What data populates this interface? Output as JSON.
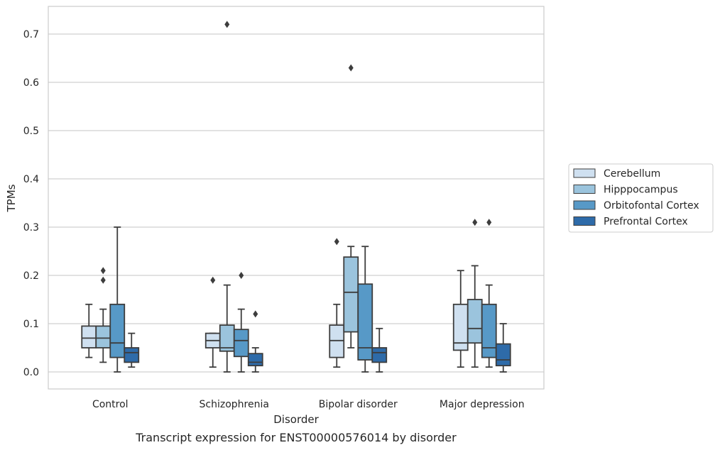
{
  "chart_data": {
    "type": "box",
    "xlabel": "Disorder",
    "ylabel": "TPMs",
    "caption": "Transcript expression for ENST00000576014 by disorder",
    "ylim": [
      -0.035,
      0.76
    ],
    "yticks": [
      "0.0",
      "0.1",
      "0.2",
      "0.3",
      "0.4",
      "0.5",
      "0.6",
      "0.7"
    ],
    "grid": true,
    "legend_position": "right",
    "categories": [
      "Control",
      "Schizophrenia",
      "Bipolar disorder",
      "Major depression"
    ],
    "series": [
      {
        "name": "Cerebellum",
        "color": "#cfe0f0",
        "boxes": [
          {
            "whislo": 0.03,
            "q1": 0.05,
            "med": 0.07,
            "q3": 0.095,
            "whishi": 0.14,
            "fliers": []
          },
          {
            "whislo": 0.01,
            "q1": 0.05,
            "med": 0.065,
            "q3": 0.08,
            "whishi": 0.08,
            "fliers": [
              0.19
            ]
          },
          {
            "whislo": 0.01,
            "q1": 0.03,
            "med": 0.065,
            "q3": 0.097,
            "whishi": 0.14,
            "fliers": [
              0.27
            ]
          },
          {
            "whislo": 0.01,
            "q1": 0.045,
            "med": 0.06,
            "q3": 0.14,
            "whishi": 0.21,
            "fliers": []
          }
        ]
      },
      {
        "name": "Hipppocampus",
        "color": "#9bc4dd",
        "boxes": [
          {
            "whislo": 0.02,
            "q1": 0.05,
            "med": 0.07,
            "q3": 0.095,
            "whishi": 0.13,
            "fliers": [
              0.19,
              0.21
            ]
          },
          {
            "whislo": 0.0,
            "q1": 0.043,
            "med": 0.05,
            "q3": 0.097,
            "whishi": 0.18,
            "fliers": [
              0.72
            ]
          },
          {
            "whislo": 0.05,
            "q1": 0.083,
            "med": 0.165,
            "q3": 0.238,
            "whishi": 0.26,
            "fliers": [
              0.63
            ]
          },
          {
            "whislo": 0.01,
            "q1": 0.06,
            "med": 0.09,
            "q3": 0.15,
            "whishi": 0.22,
            "fliers": [
              0.31
            ]
          }
        ]
      },
      {
        "name": "Orbitofontal Cortex",
        "color": "#5799c7",
        "boxes": [
          {
            "whislo": 0.0,
            "q1": 0.03,
            "med": 0.06,
            "q3": 0.14,
            "whishi": 0.3,
            "fliers": []
          },
          {
            "whislo": 0.0,
            "q1": 0.032,
            "med": 0.065,
            "q3": 0.088,
            "whishi": 0.13,
            "fliers": [
              0.2
            ]
          },
          {
            "whislo": 0.0,
            "q1": 0.025,
            "med": 0.05,
            "q3": 0.182,
            "whishi": 0.26,
            "fliers": []
          },
          {
            "whislo": 0.01,
            "q1": 0.03,
            "med": 0.05,
            "q3": 0.14,
            "whishi": 0.18,
            "fliers": [
              0.31
            ]
          }
        ]
      },
      {
        "name": "Prefrontal Cortex",
        "color": "#2e6ba9",
        "boxes": [
          {
            "whislo": 0.01,
            "q1": 0.02,
            "med": 0.04,
            "q3": 0.05,
            "whishi": 0.08,
            "fliers": []
          },
          {
            "whislo": 0.0,
            "q1": 0.013,
            "med": 0.02,
            "q3": 0.038,
            "whishi": 0.05,
            "fliers": [
              0.12
            ]
          },
          {
            "whislo": 0.0,
            "q1": 0.02,
            "med": 0.04,
            "q3": 0.05,
            "whishi": 0.09,
            "fliers": []
          },
          {
            "whislo": 0.0,
            "q1": 0.013,
            "med": 0.025,
            "q3": 0.058,
            "whishi": 0.1,
            "fliers": []
          }
        ]
      }
    ]
  }
}
